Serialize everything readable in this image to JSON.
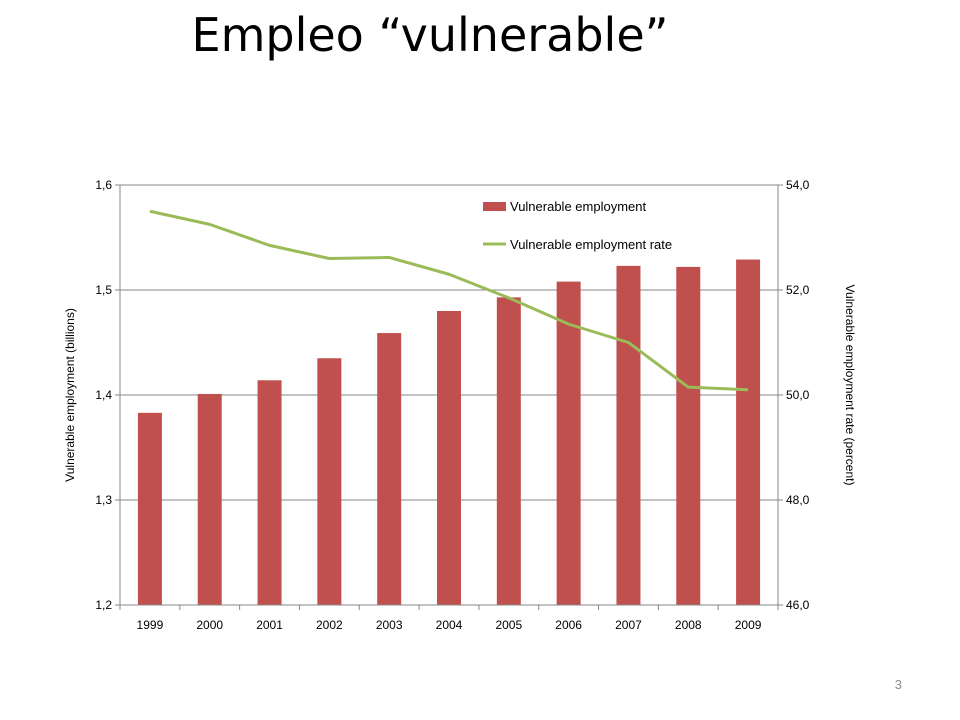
{
  "slide": {
    "title": "Empleo “vulnerable”",
    "page_number": "3"
  },
  "chart_data": {
    "type": "bar",
    "categories": [
      "1999",
      "2000",
      "2001",
      "2002",
      "2003",
      "2004",
      "2005",
      "2006",
      "2007",
      "2008",
      "2009"
    ],
    "series": [
      {
        "name": "Vulnerable employment",
        "type": "bar",
        "axis": "left",
        "color": "#c0504d",
        "values": [
          1.383,
          1.401,
          1.414,
          1.435,
          1.459,
          1.48,
          1.493,
          1.508,
          1.523,
          1.522,
          1.529
        ]
      },
      {
        "name": "Vulnerable employment rate",
        "type": "line",
        "axis": "right",
        "color": "#9bbb59",
        "values": [
          53.5,
          53.25,
          52.85,
          52.6,
          52.62,
          52.3,
          51.85,
          51.35,
          51.0,
          50.15,
          50.1
        ]
      }
    ],
    "y_left": {
      "label": "Vulnerable employment (billions)",
      "lim": [
        1.2,
        1.6
      ],
      "ticks": [
        "1,2",
        "1,3",
        "1,4",
        "1,5",
        "1,6"
      ]
    },
    "y_right": {
      "label": "Vulnerable employment rate (percent)",
      "lim": [
        46.0,
        54.0
      ],
      "ticks": [
        "46,0",
        "48,0",
        "50,0",
        "52,0",
        "54,0"
      ]
    },
    "grid": true,
    "legend_position": "top-right"
  }
}
